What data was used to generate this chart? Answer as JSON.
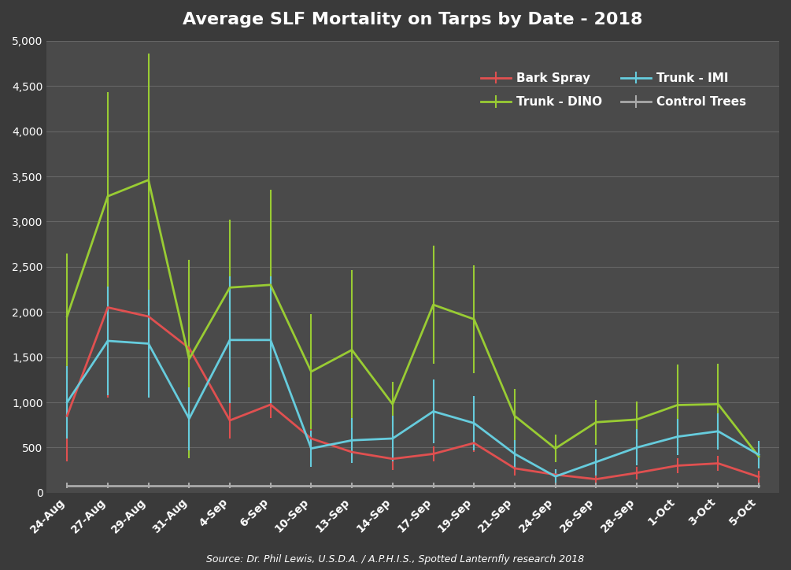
{
  "title": "Average SLF Mortality on Tarps by Date - 2018",
  "source": "Source: Dr. Phil Lewis, U.S.D.A. / A.P.H.I.S., Spotted Lanternfly research 2018",
  "x_labels": [
    "24-Aug",
    "27-Aug",
    "29-Aug",
    "31-Aug",
    "4-Sep",
    "6-Sep",
    "10-Sep",
    "13-Sep",
    "14-Sep",
    "17-Sep",
    "19-Sep",
    "21-Sep",
    "24-Sep",
    "26-Sep",
    "28-Sep",
    "1-Oct",
    "3-Oct",
    "5-Oct"
  ],
  "bark_spray": [
    850,
    2050,
    1950,
    1600,
    800,
    975,
    600,
    450,
    375,
    430,
    550,
    270,
    200,
    150,
    220,
    300,
    325,
    175
  ],
  "bark_spray_err": [
    500,
    1000,
    700,
    850,
    200,
    150,
    200,
    80,
    120,
    80,
    100,
    80,
    60,
    50,
    70,
    80,
    80,
    70
  ],
  "trunk_dino": [
    1950,
    3280,
    3460,
    1480,
    2270,
    2300,
    1340,
    1580,
    980,
    2080,
    1920,
    850,
    490,
    780,
    810,
    970,
    980,
    400
  ],
  "trunk_dino_err": [
    700,
    1150,
    1400,
    1100,
    750,
    1050,
    640,
    880,
    250,
    650,
    600,
    300,
    150,
    250,
    200,
    450,
    450,
    100
  ],
  "trunk_imi": [
    1000,
    1680,
    1650,
    820,
    1690,
    1690,
    490,
    580,
    600,
    900,
    770,
    430,
    180,
    340,
    500,
    620,
    680,
    420
  ],
  "trunk_imi_err": [
    400,
    600,
    600,
    350,
    700,
    700,
    200,
    250,
    250,
    350,
    300,
    150,
    80,
    150,
    200,
    200,
    200,
    150
  ],
  "control": [
    80,
    80,
    80,
    80,
    80,
    80,
    80,
    80,
    80,
    80,
    80,
    80,
    80,
    80,
    80,
    80,
    80,
    80
  ],
  "control_err": [
    30,
    30,
    30,
    30,
    30,
    30,
    30,
    30,
    30,
    30,
    30,
    30,
    30,
    30,
    30,
    30,
    30,
    30
  ],
  "bark_color": "#e05050",
  "dino_color": "#99cc33",
  "imi_color": "#66ccdd",
  "control_color": "#aaaaaa",
  "background_color": "#3a3a3a",
  "plot_bg_color": "#4a4a4a",
  "grid_color": "#666666",
  "text_color": "#ffffff",
  "ylim": [
    0,
    5000
  ],
  "yticks": [
    0,
    500,
    1000,
    1500,
    2000,
    2500,
    3000,
    3500,
    4000,
    4500,
    5000
  ]
}
